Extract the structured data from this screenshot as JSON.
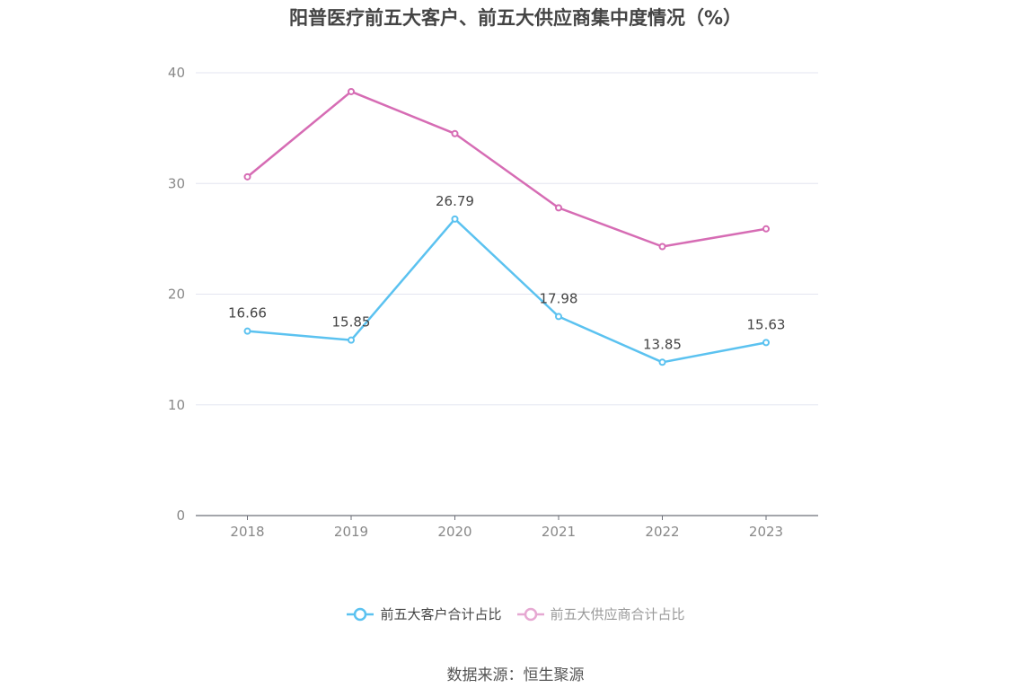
{
  "chart_data": {
    "type": "line",
    "title": "阳普医疗前五大客户、前五大供应商集中度情况（%）",
    "categories": [
      "2018",
      "2019",
      "2020",
      "2021",
      "2022",
      "2023"
    ],
    "ylim": [
      0,
      40
    ],
    "yticks": [
      0,
      10,
      20,
      30,
      40
    ],
    "grid": true,
    "legend_position": "bottom",
    "series": [
      {
        "name": "前五大客户合计占比",
        "color": "#5bc2f0",
        "values": [
          16.66,
          15.85,
          26.79,
          17.98,
          13.85,
          15.63
        ],
        "labels": [
          "16.66",
          "15.85",
          "26.79",
          "17.98",
          "13.85",
          "15.63"
        ]
      },
      {
        "name": "前五大供应商合计占比",
        "color": "#d66cb4",
        "values": [
          30.6,
          38.3,
          34.5,
          27.8,
          24.3,
          25.9
        ]
      }
    ]
  },
  "legend": {
    "series1_label": "前五大客户合计占比",
    "series2_label": "前五大供应商合计占比",
    "series1_color": "#5bc2f0",
    "series2_color": "#e6a8d2"
  },
  "source": "数据来源：恒生聚源"
}
